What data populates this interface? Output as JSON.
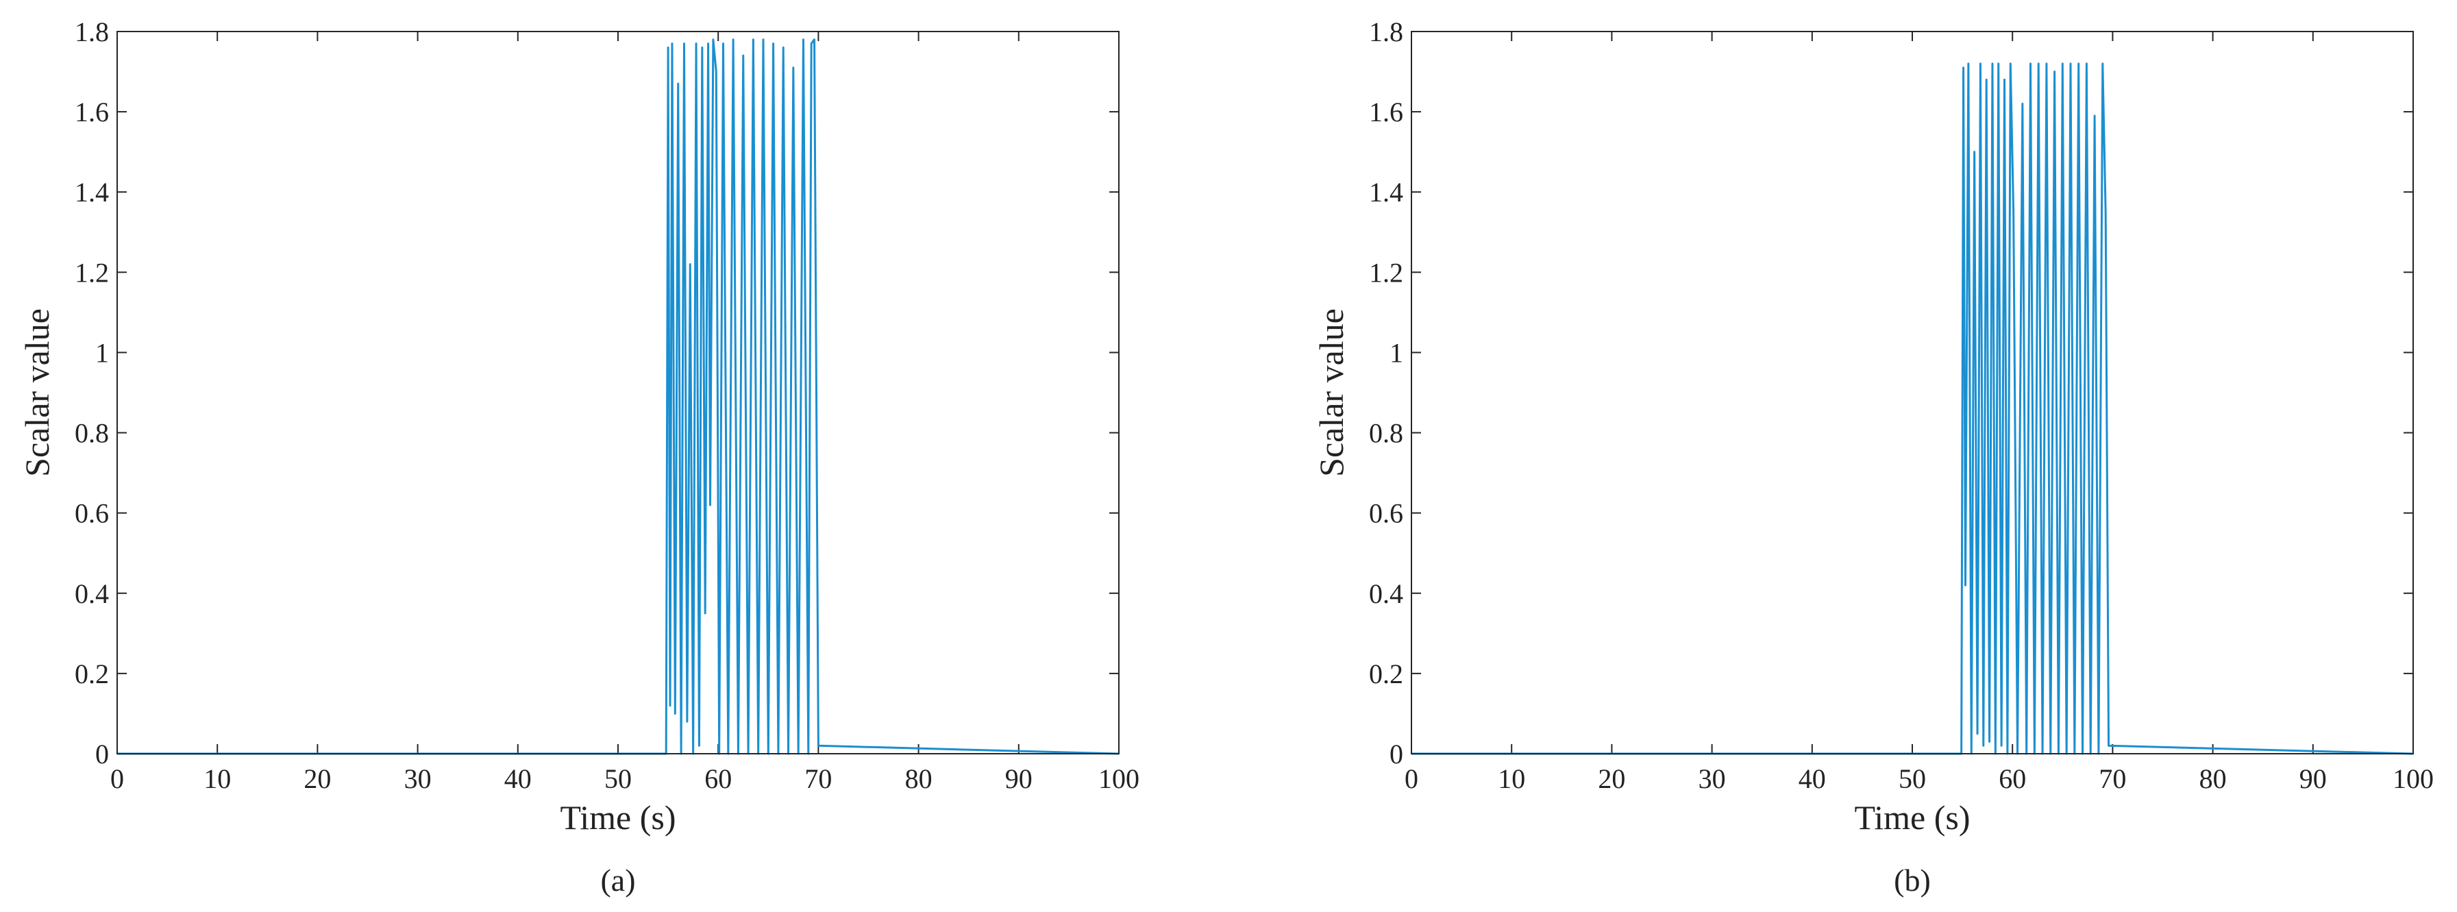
{
  "chart_data": [
    {
      "type": "line",
      "caption": "(a)",
      "xlabel": "Time (s)",
      "ylabel": "Scalar value",
      "xlim": [
        0,
        100
      ],
      "xticks": [
        0,
        10,
        20,
        30,
        40,
        50,
        60,
        70,
        80,
        90,
        100
      ],
      "ylim": [
        0,
        1.8
      ],
      "yticks": [
        0,
        0.2,
        0.4,
        0.6,
        0.8,
        1,
        1.2,
        1.4,
        1.6,
        1.8
      ],
      "color": "#1a8fd1",
      "x": [
        0,
        54.8,
        55.0,
        55.2,
        55.4,
        55.7,
        56.0,
        56.3,
        56.6,
        56.9,
        57.2,
        57.5,
        57.8,
        58.1,
        58.4,
        58.7,
        59.0,
        59.2,
        59.5,
        59.8,
        60.1,
        60.5,
        61.0,
        61.5,
        62.0,
        62.5,
        63.0,
        63.5,
        64.0,
        64.5,
        65.0,
        65.5,
        66.0,
        66.5,
        67.0,
        67.5,
        68.0,
        68.5,
        69.0,
        69.3,
        69.6,
        70.0,
        100
      ],
      "values": [
        0,
        0,
        1.76,
        0.12,
        1.77,
        0.1,
        1.67,
        0,
        1.77,
        0.08,
        1.22,
        0,
        1.77,
        0.02,
        1.76,
        0.35,
        1.77,
        0.62,
        1.78,
        1.7,
        0,
        1.77,
        0,
        1.78,
        0,
        1.74,
        0,
        1.78,
        0,
        1.78,
        0,
        1.77,
        0,
        1.76,
        0,
        1.71,
        0,
        1.78,
        0,
        1.77,
        1.78,
        0.02,
        0
      ]
    },
    {
      "type": "line",
      "caption": "(b)",
      "xlabel": "Time (s)",
      "ylabel": "Scalar value",
      "xlim": [
        0,
        100
      ],
      "xticks": [
        0,
        10,
        20,
        30,
        40,
        50,
        60,
        70,
        80,
        90,
        100
      ],
      "ylim": [
        0,
        1.8
      ],
      "yticks": [
        0,
        0.2,
        0.4,
        0.6,
        0.8,
        1,
        1.2,
        1.4,
        1.6,
        1.8
      ],
      "color": "#1a8fd1",
      "x": [
        0,
        54.9,
        55.1,
        55.3,
        55.6,
        55.9,
        56.2,
        56.5,
        56.8,
        57.1,
        57.4,
        57.7,
        58.0,
        58.3,
        58.6,
        58.9,
        59.2,
        59.5,
        59.8,
        60.1,
        60.5,
        61.0,
        61.4,
        61.8,
        62.2,
        62.6,
        63.0,
        63.4,
        63.8,
        64.2,
        64.6,
        65.0,
        65.4,
        65.8,
        66.2,
        66.6,
        67.0,
        67.4,
        67.8,
        68.2,
        68.6,
        69.0,
        69.3,
        69.6,
        100
      ],
      "values": [
        0,
        0,
        1.71,
        0.42,
        1.72,
        0,
        1.5,
        0.05,
        1.72,
        0.02,
        1.68,
        0.03,
        1.72,
        0,
        1.72,
        0.02,
        1.68,
        0,
        1.72,
        1.35,
        0,
        1.62,
        0,
        1.72,
        0,
        1.72,
        0,
        1.72,
        0,
        1.7,
        0,
        1.72,
        0,
        1.72,
        0,
        1.72,
        0,
        1.72,
        0,
        1.59,
        0,
        1.72,
        1.35,
        0.02,
        0
      ]
    }
  ]
}
